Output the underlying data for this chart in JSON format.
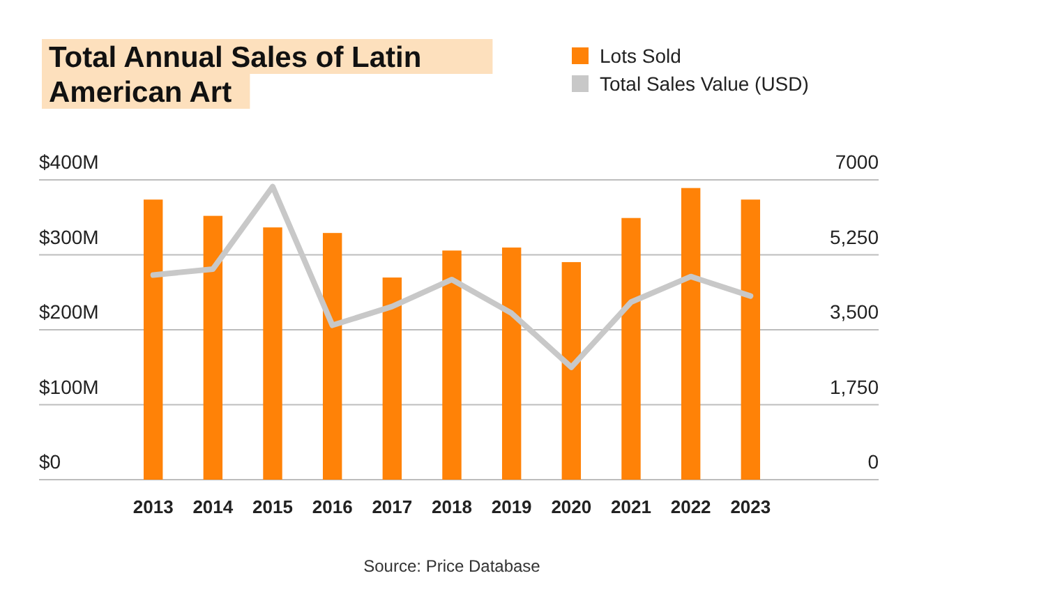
{
  "chart_data": {
    "type": "bar",
    "title": "Total Annual Sales of Latin American Art",
    "categories": [
      "2013",
      "2014",
      "2015",
      "2016",
      "2017",
      "2018",
      "2019",
      "2020",
      "2021",
      "2022",
      "2023"
    ],
    "series": [
      {
        "name": "Lots Sold",
        "axis": "y2",
        "color": "#ff8207",
        "values": [
          6540,
          6160,
          5890,
          5760,
          4720,
          5350,
          5420,
          5080,
          6110,
          6810,
          6540
        ]
      },
      {
        "name": "Total Sales Value (USD)",
        "type": "line",
        "axis": "y",
        "color": "#c8c8c8",
        "values": [
          273,
          281,
          391,
          206,
          231,
          267,
          222,
          150,
          237,
          271,
          245
        ]
      }
    ],
    "ylim": [
      0,
      400
    ],
    "yticks": [
      {
        "value": 0,
        "label": "$0"
      },
      {
        "value": 100,
        "label": "$100M"
      },
      {
        "value": 200,
        "label": "$200M"
      },
      {
        "value": 300,
        "label": "$300M"
      },
      {
        "value": 400,
        "label": "$400M"
      }
    ],
    "y2lim": [
      0,
      7000
    ],
    "y2ticks": [
      {
        "value": 0,
        "label": "0"
      },
      {
        "value": 1750,
        "label": "1,750"
      },
      {
        "value": 3500,
        "label": "3,500"
      },
      {
        "value": 5250,
        "label": "5,250"
      },
      {
        "value": 7000,
        "label": "7000"
      }
    ],
    "grid": "y",
    "legend": "top right",
    "annotations": [
      "Source: Price Database"
    ]
  }
}
